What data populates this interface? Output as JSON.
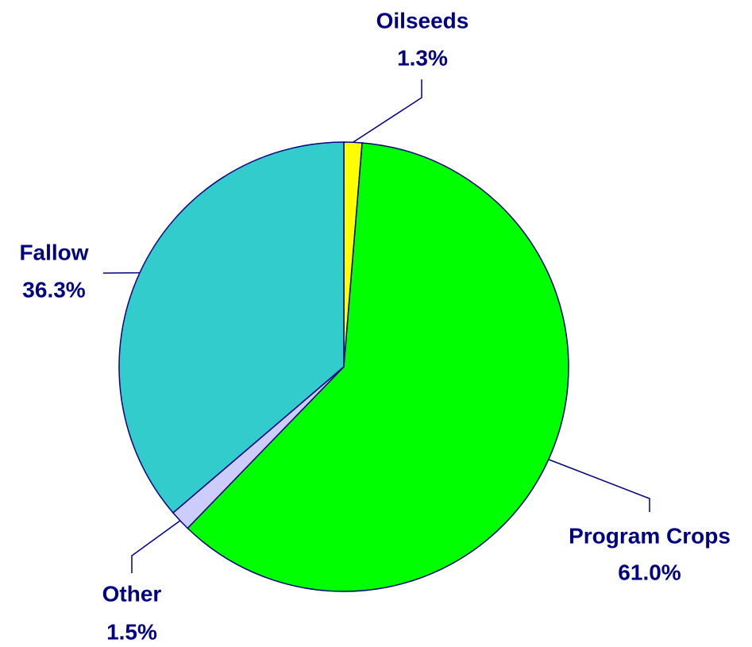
{
  "chart_data": {
    "type": "pie",
    "categories": [
      "Oilseeds",
      "Program Crops",
      "Other",
      "Fallow"
    ],
    "values": [
      1.3,
      61.0,
      1.5,
      36.3
    ],
    "value_labels": [
      "1.3%",
      "61.0%",
      "1.5%",
      "36.3%"
    ],
    "colors": [
      "#ffff00",
      "#00ff00",
      "#ccccff",
      "#33cccc"
    ]
  }
}
